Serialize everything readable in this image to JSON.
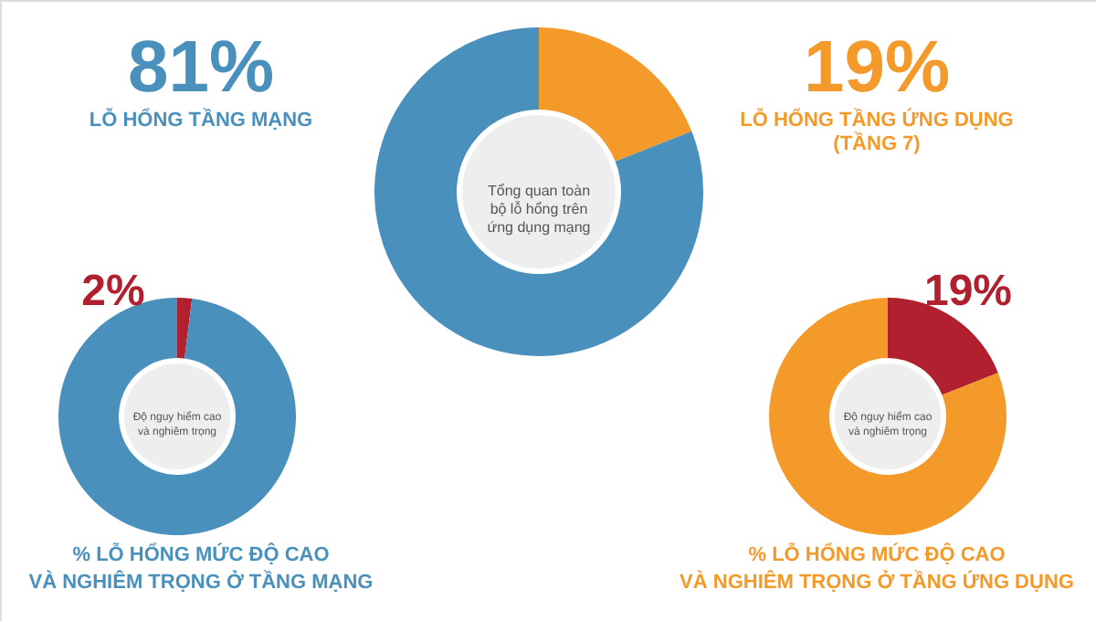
{
  "chart_data": [
    {
      "type": "donut",
      "categories": [
        "LỖ HỔNG TẦNG ỨNG DỤNG\n(TẦNG 7)",
        "LỖ HỔNG TẦNG MẠNG"
      ],
      "values": [
        19,
        81
      ],
      "colors": [
        "#f39a2b",
        "#4a90bd"
      ],
      "value_labels": [
        "19%",
        "81%"
      ],
      "annotations": [
        "Tổng quan toàn\nbộ lỗ hổng trên\nứng dụng mạng"
      ]
    },
    {
      "type": "donut",
      "title": "% LỖ HỔNG MỨC ĐỘ CAO\nVÀ NGHIÊM TRỌNG Ở TẦNG MẠNG",
      "categories": [
        null,
        null
      ],
      "values": [
        2,
        98
      ],
      "colors": [
        "#b0202e",
        "#4a90bd"
      ],
      "value_labels": [
        "2%",
        null
      ],
      "annotations": [
        "Độ nguy hiểm cao\nvà nghiêm trọng"
      ]
    },
    {
      "type": "donut",
      "title": "% LỖ HỔNG MỨC ĐỘ CAO\nVÀ NGHIÊM TRỌNG Ở TẦNG ỨNG DỤNG",
      "categories": [
        null,
        null
      ],
      "values": [
        19,
        81
      ],
      "colors": [
        "#b0202e",
        "#f39a2b"
      ],
      "value_labels": [
        "19%",
        null
      ],
      "annotations": [
        "Độ nguy hiểm cao\nvà nghiêm trọng"
      ]
    }
  ]
}
